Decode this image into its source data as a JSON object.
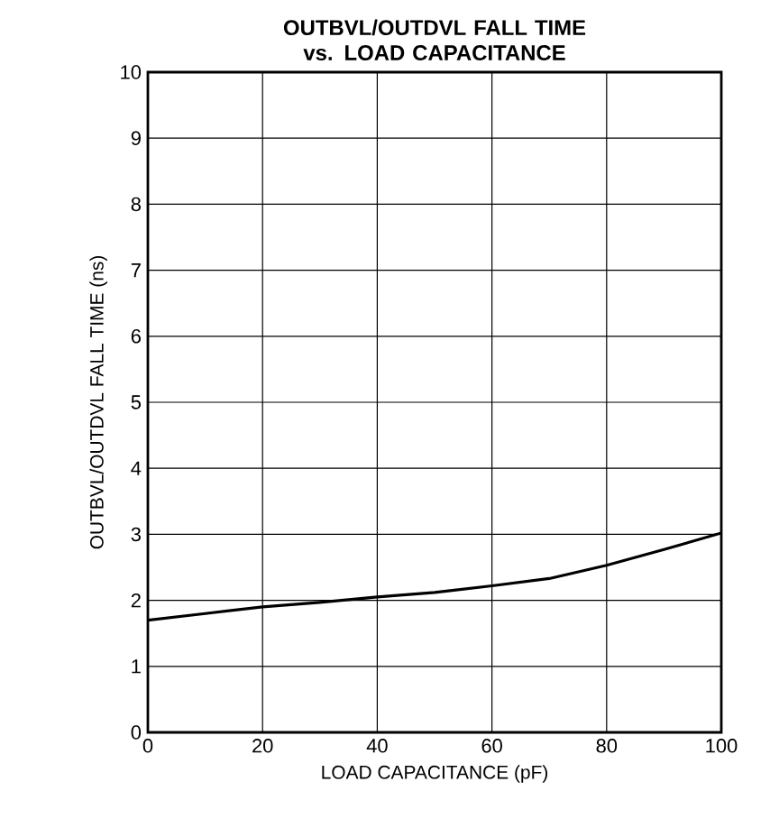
{
  "chart_data": {
    "type": "line",
    "title": "OUTBVL/OUTDVL FALL TIME vs. LOAD CAPACITANCE",
    "xlabel": "LOAD CAPACITANCE (pF)",
    "ylabel": "OUTBVL/OUTDVL FALL TIME (ns)",
    "x": [
      0,
      10,
      20,
      30,
      40,
      50,
      60,
      70,
      80,
      90,
      100
    ],
    "values": [
      1.7,
      1.8,
      1.9,
      1.97,
      2.05,
      2.12,
      2.22,
      2.33,
      2.53,
      2.77,
      3.02
    ],
    "color": "#000000",
    "xlim": [
      0,
      100
    ],
    "ylim": [
      0,
      10
    ],
    "xticks": [
      0,
      20,
      40,
      60,
      80,
      100
    ],
    "yticks": [
      0,
      1,
      2,
      3,
      4,
      5,
      6,
      7,
      8,
      9,
      10
    ],
    "grid": true
  }
}
